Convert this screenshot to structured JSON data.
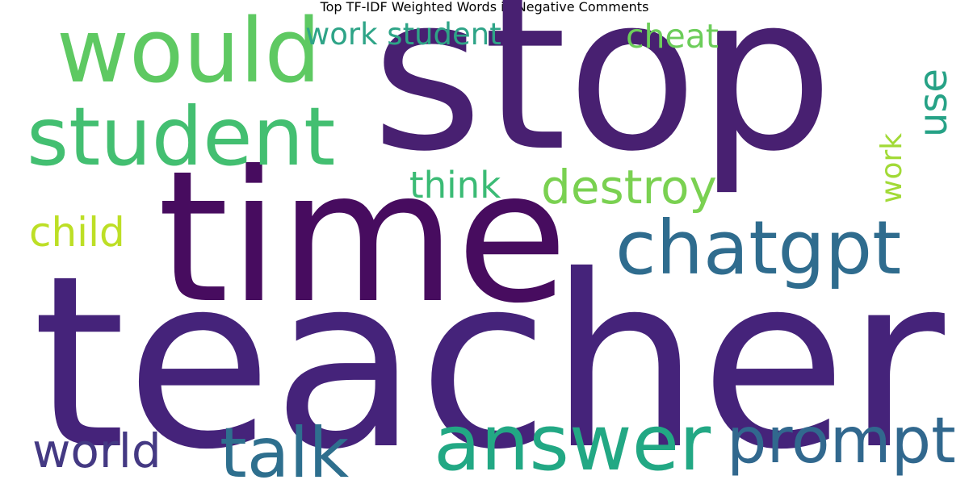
{
  "title": "Top TF-IDF Weighted Words in Negative Comments",
  "colormap": "viridis",
  "words": [
    {
      "text": "teacher",
      "color": "#45237a"
    },
    {
      "text": "stop",
      "color": "#482071"
    },
    {
      "text": "time",
      "color": "#470c5f"
    },
    {
      "text": "would",
      "color": "#5ec962"
    },
    {
      "text": "student",
      "color": "#43bf71"
    },
    {
      "text": "chatgpt",
      "color": "#2f6c8e"
    },
    {
      "text": "answer",
      "color": "#22a884"
    },
    {
      "text": "prompt",
      "color": "#31688e"
    },
    {
      "text": "talk",
      "color": "#2e6f8e"
    },
    {
      "text": "destroy",
      "color": "#7ad151"
    },
    {
      "text": "work student",
      "color": "#2ea487"
    },
    {
      "text": "cheat",
      "color": "#6ccd5a"
    },
    {
      "text": "think",
      "color": "#3bbb75"
    },
    {
      "text": "world",
      "color": "#443983"
    },
    {
      "text": "child",
      "color": "#bddf26"
    },
    {
      "text": "use",
      "color": "#26a286"
    },
    {
      "text": "work",
      "color": "#a2da37"
    }
  ]
}
